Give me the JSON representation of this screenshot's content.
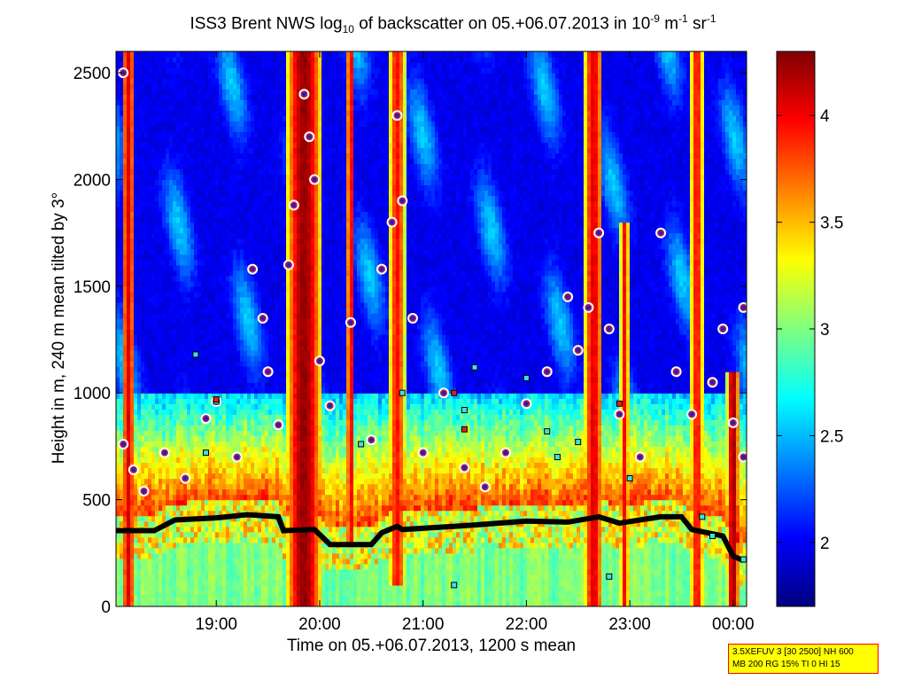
{
  "chart_data": {
    "type": "heatmap",
    "title_parts": {
      "prefix": "ISS3 Brent NWS log",
      "sub": "10",
      "mid": " of backscatter on 05.+06.07.2013 in 10",
      "exp1": "-9",
      "unit_m": " m",
      "exp2": "-1",
      "unit_sr": " sr",
      "exp3": "-1"
    },
    "xlabel": "Time on 05.+06.07.2013, 1200 s mean",
    "ylabel": "Height in m, 240 m mean tilted by 3°",
    "x_ticks": [
      "19:00",
      "20:00",
      "21:00",
      "22:00",
      "23:00",
      "00:00"
    ],
    "x_tick_hours": [
      19,
      20,
      21,
      22,
      23,
      24
    ],
    "xlim_hours": [
      18.03,
      24.13
    ],
    "y_ticks": [
      0,
      500,
      1000,
      1500,
      2000,
      2500
    ],
    "ylim": [
      0,
      2600
    ],
    "colorbar": {
      "ticks": [
        2,
        2.5,
        3,
        3.5,
        4
      ],
      "range": [
        1.7,
        4.3
      ],
      "colormap": "jet"
    },
    "plumes": [
      {
        "center_hour": 18.15,
        "width_h": 0.12,
        "top": 2600,
        "base": 0,
        "strength": 0.8
      },
      {
        "center_hour": 19.85,
        "width_h": 0.35,
        "top": 2600,
        "base": 0,
        "strength": 0.95
      },
      {
        "center_hour": 20.3,
        "width_h": 0.08,
        "top": 2600,
        "base": 300,
        "strength": 0.75
      },
      {
        "center_hour": 20.75,
        "width_h": 0.15,
        "top": 2600,
        "base": 100,
        "strength": 0.7
      },
      {
        "center_hour": 22.65,
        "width_h": 0.18,
        "top": 2600,
        "base": 0,
        "strength": 0.78
      },
      {
        "center_hour": 22.95,
        "width_h": 0.08,
        "top": 1800,
        "base": 0,
        "strength": 0.72
      },
      {
        "center_hour": 23.65,
        "width_h": 0.12,
        "top": 2600,
        "base": 0,
        "strength": 0.7
      },
      {
        "center_hour": 24.0,
        "width_h": 0.12,
        "top": 1100,
        "base": 0,
        "strength": 0.92
      }
    ],
    "mixing_layer_height": [
      {
        "x": 18.0,
        "y": 355
      },
      {
        "x": 18.4,
        "y": 355
      },
      {
        "x": 18.6,
        "y": 405
      },
      {
        "x": 19.0,
        "y": 415
      },
      {
        "x": 19.3,
        "y": 430
      },
      {
        "x": 19.6,
        "y": 420
      },
      {
        "x": 19.65,
        "y": 355
      },
      {
        "x": 19.95,
        "y": 360
      },
      {
        "x": 20.1,
        "y": 290
      },
      {
        "x": 20.5,
        "y": 290
      },
      {
        "x": 20.6,
        "y": 345
      },
      {
        "x": 20.75,
        "y": 375
      },
      {
        "x": 20.8,
        "y": 360
      },
      {
        "x": 21.3,
        "y": 375
      },
      {
        "x": 21.6,
        "y": 385
      },
      {
        "x": 22.0,
        "y": 400
      },
      {
        "x": 22.4,
        "y": 395
      },
      {
        "x": 22.7,
        "y": 420
      },
      {
        "x": 22.9,
        "y": 390
      },
      {
        "x": 23.3,
        "y": 420
      },
      {
        "x": 23.5,
        "y": 420
      },
      {
        "x": 23.6,
        "y": 360
      },
      {
        "x": 23.9,
        "y": 330
      },
      {
        "x": 24.0,
        "y": 235
      },
      {
        "x": 24.1,
        "y": 215
      }
    ],
    "aerosol_layer_points": [
      {
        "x": 18.1,
        "y": 2500
      },
      {
        "x": 18.1,
        "y": 760
      },
      {
        "x": 18.2,
        "y": 640
      },
      {
        "x": 18.3,
        "y": 540
      },
      {
        "x": 18.5,
        "y": 720
      },
      {
        "x": 18.7,
        "y": 600
      },
      {
        "x": 18.9,
        "y": 880
      },
      {
        "x": 19.0,
        "y": 960
      },
      {
        "x": 19.2,
        "y": 700
      },
      {
        "x": 19.35,
        "y": 1580
      },
      {
        "x": 19.45,
        "y": 1350
      },
      {
        "x": 19.5,
        "y": 1100
      },
      {
        "x": 19.6,
        "y": 850
      },
      {
        "x": 19.7,
        "y": 1600
      },
      {
        "x": 19.75,
        "y": 1880
      },
      {
        "x": 19.85,
        "y": 2400
      },
      {
        "x": 19.9,
        "y": 2200
      },
      {
        "x": 19.95,
        "y": 2000
      },
      {
        "x": 20.0,
        "y": 1150
      },
      {
        "x": 20.1,
        "y": 940
      },
      {
        "x": 20.3,
        "y": 1330
      },
      {
        "x": 20.5,
        "y": 780
      },
      {
        "x": 20.6,
        "y": 1580
      },
      {
        "x": 20.7,
        "y": 1800
      },
      {
        "x": 20.75,
        "y": 2300
      },
      {
        "x": 20.8,
        "y": 1900
      },
      {
        "x": 20.9,
        "y": 1350
      },
      {
        "x": 21.0,
        "y": 720
      },
      {
        "x": 21.2,
        "y": 1000
      },
      {
        "x": 21.4,
        "y": 650
      },
      {
        "x": 21.6,
        "y": 560
      },
      {
        "x": 21.8,
        "y": 720
      },
      {
        "x": 22.0,
        "y": 950
      },
      {
        "x": 22.2,
        "y": 1100
      },
      {
        "x": 22.4,
        "y": 1450
      },
      {
        "x": 22.5,
        "y": 1200
      },
      {
        "x": 22.6,
        "y": 1400
      },
      {
        "x": 22.7,
        "y": 1750
      },
      {
        "x": 22.8,
        "y": 1300
      },
      {
        "x": 22.9,
        "y": 900
      },
      {
        "x": 23.1,
        "y": 700
      },
      {
        "x": 23.3,
        "y": 1750
      },
      {
        "x": 23.45,
        "y": 1100
      },
      {
        "x": 23.6,
        "y": 900
      },
      {
        "x": 23.8,
        "y": 1050
      },
      {
        "x": 23.9,
        "y": 1300
      },
      {
        "x": 24.0,
        "y": 860
      },
      {
        "x": 24.1,
        "y": 1400
      },
      {
        "x": 24.1,
        "y": 700
      }
    ],
    "cloud_flag_points": [
      {
        "x": 18.8,
        "y": 1180
      },
      {
        "x": 18.9,
        "y": 720
      },
      {
        "x": 19.0,
        "y": 960
      },
      {
        "x": 20.4,
        "y": 760
      },
      {
        "x": 20.8,
        "y": 1000
      },
      {
        "x": 21.3,
        "y": 100
      },
      {
        "x": 21.4,
        "y": 920
      },
      {
        "x": 21.5,
        "y": 1120
      },
      {
        "x": 22.0,
        "y": 1070
      },
      {
        "x": 22.2,
        "y": 820
      },
      {
        "x": 22.3,
        "y": 700
      },
      {
        "x": 22.5,
        "y": 770
      },
      {
        "x": 22.8,
        "y": 140
      },
      {
        "x": 23.0,
        "y": 600
      },
      {
        "x": 23.7,
        "y": 420
      },
      {
        "x": 23.8,
        "y": 330
      },
      {
        "x": 24.1,
        "y": 220
      }
    ],
    "noise_flag_points": [
      {
        "x": 19.0,
        "y": 970
      },
      {
        "x": 21.3,
        "y": 1000
      },
      {
        "x": 22.9,
        "y": 950
      },
      {
        "x": 21.4,
        "y": 830
      }
    ]
  },
  "info_box": {
    "line1": "3.5XEFUV 3 [30 2500] NH 600",
    "line2": "MB 200 RG 15% TI 0 HI 15"
  }
}
